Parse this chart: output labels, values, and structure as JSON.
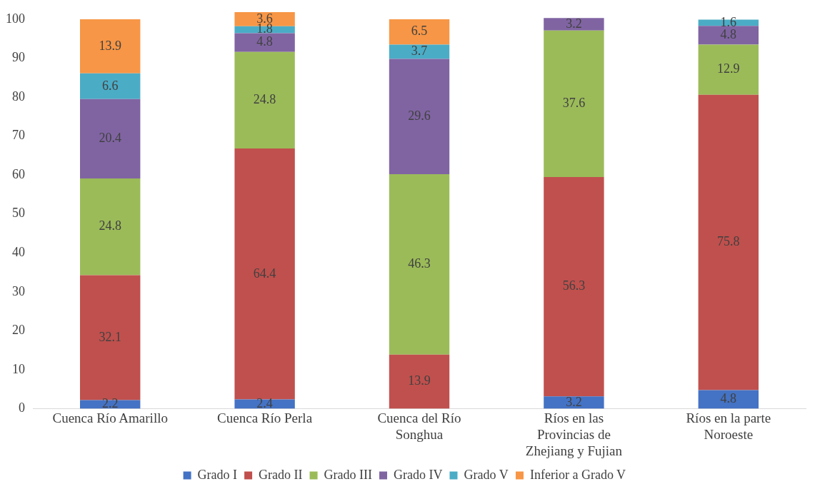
{
  "chart_data": {
    "type": "bar",
    "stacked": true,
    "categories": [
      "Cuenca Río Amarillo",
      "Cuenca Río Perla",
      "Cuenca del Río Songhua",
      "Ríos en las Provincias de Zhejiang y Fujian",
      "Ríos en la parte Noroeste"
    ],
    "series": [
      {
        "name": "Grado I",
        "color": "#4472c4",
        "values": [
          2.2,
          2.4,
          null,
          3.2,
          4.8
        ]
      },
      {
        "name": "Grado II",
        "color": "#c0504d",
        "values": [
          32.1,
          64.4,
          13.9,
          56.3,
          75.8
        ]
      },
      {
        "name": "Grado III",
        "color": "#9bbb59",
        "values": [
          24.8,
          24.8,
          46.3,
          37.6,
          12.9
        ]
      },
      {
        "name": "Grado IV",
        "color": "#8064a2",
        "values": [
          20.4,
          4.8,
          29.6,
          3.2,
          4.8
        ]
      },
      {
        "name": "Grado V",
        "color": "#4bacc6",
        "values": [
          6.6,
          1.8,
          3.7,
          null,
          1.6
        ]
      },
      {
        "name": "Inferior a Grado V",
        "color": "#f79646",
        "values": [
          13.9,
          3.6,
          6.5,
          null,
          null
        ]
      }
    ],
    "ylim": [
      0,
      102
    ],
    "yticks": [
      0,
      10,
      20,
      30,
      40,
      50,
      60,
      70,
      80,
      90,
      100
    ],
    "grid": false,
    "legend": "bottom",
    "data_labels": true
  }
}
